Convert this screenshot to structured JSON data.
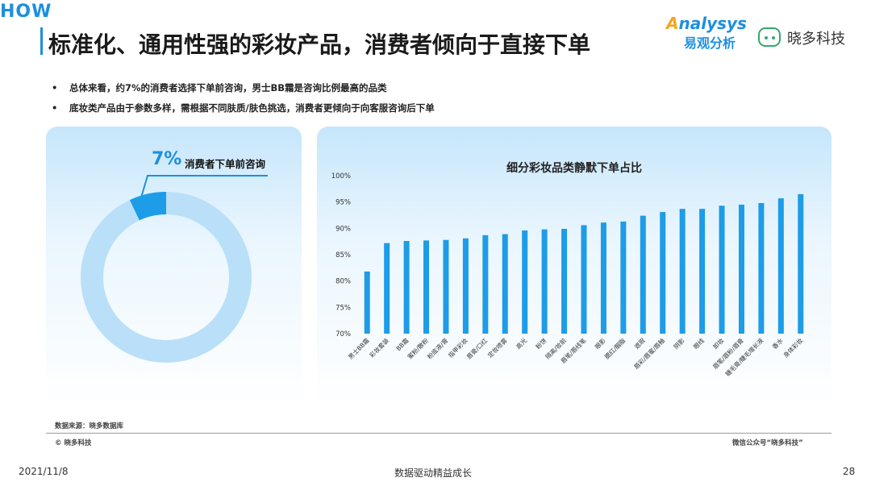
{
  "header": {
    "tag": "HOW",
    "title": "标准化、通用性强的彩妆产品，消费者倾向于直接下单",
    "logo_analysys_top": "nalysys",
    "logo_analysys_top_letter": "A",
    "logo_analysys_bottom": "易观分析",
    "logo_xiaoduo": "晓多科技"
  },
  "bullets": [
    "总体来看，约7%的消费者选择下单前咨询，男士BB霜是咨询比例最高的品类",
    "底妆类产品由于参数多样，需根据不同肤质/肤色挑选，消费者更倾向于向客服咨询后下单"
  ],
  "bullet_symbol": "•",
  "donut": {
    "percent_label": "7%",
    "label": "消费者下单前咨询",
    "value": 0.07,
    "colors": {
      "highlight": "#1d9ce8",
      "rest": "#b9e0f8"
    }
  },
  "chart_data": {
    "type": "bar",
    "title": "细分彩妆品类静默下单占比",
    "categories": [
      "男士BB霜",
      "彩妆套装",
      "BB霜",
      "蜜粉/散粉",
      "粉底液/膏",
      "指甲彩妆",
      "唇膏/口红",
      "定妆喷雾",
      "高光",
      "粉饼",
      "隔离/妆前",
      "唇笔/唇线笔",
      "眼影",
      "腮红/胭脂",
      "遮瑕",
      "唇彩/唇蜜/唇釉",
      "阴影",
      "眼线",
      "卸妆",
      "眉笔/眉粉/眉膏",
      "睫毛膏/睫毛增长液",
      "香水",
      "身体彩妆"
    ],
    "values": [
      81.8,
      87.2,
      87.6,
      87.7,
      87.8,
      88.1,
      88.7,
      88.9,
      89.6,
      89.8,
      89.9,
      90.6,
      91.1,
      91.3,
      92.4,
      93.1,
      93.7,
      93.7,
      94.3,
      94.5,
      94.8,
      95.7,
      96.5
    ],
    "ylim": [
      70,
      100
    ],
    "yticks": [
      70,
      75,
      80,
      85,
      90,
      95,
      100
    ],
    "ytick_labels": [
      "70%",
      "75%",
      "80%",
      "85%",
      "90%",
      "95%",
      "100%"
    ],
    "grid": false,
    "bar_color": "#1d9ce8"
  },
  "footer": {
    "source": "数据来源：晓多数据库",
    "copyright": "© 晓多科技",
    "wechat": "微信公众号“晓多科技”",
    "date": "2021/11/8",
    "slogan": "数据驱动精益成长",
    "page": "28"
  }
}
